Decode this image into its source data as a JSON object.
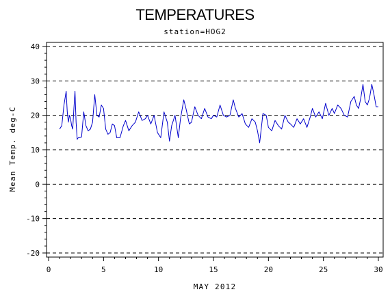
{
  "chart_data": {
    "type": "line",
    "title": "TEMPERATURES",
    "subtitle": "station=HOG2",
    "xlabel": "MAY 2012",
    "ylabel": "Mean Temp. deg-C",
    "xlim": [
      0,
      30
    ],
    "ylim": [
      -20,
      40
    ],
    "x_ticks": [
      0,
      5,
      10,
      15,
      20,
      25,
      30
    ],
    "y_ticks": [
      -20,
      -10,
      0,
      10,
      20,
      30,
      40
    ],
    "grid": "horizontal dashed lines at major y ticks",
    "line_color": "#0000cc",
    "series": [
      {
        "x": [
          1.0,
          1.2,
          1.4,
          1.6,
          1.7,
          1.8,
          1.9,
          2.0,
          2.1,
          2.2,
          2.3,
          2.4,
          2.5,
          2.6,
          2.7,
          2.8,
          3.0,
          3.2,
          3.4,
          3.6,
          3.8,
          4.0,
          4.2,
          4.4,
          4.6,
          4.8,
          5.0,
          5.2,
          5.4,
          5.6,
          5.8,
          6.0,
          6.2,
          6.5,
          6.8,
          7.0,
          7.3,
          7.6,
          7.9,
          8.2,
          8.5,
          8.8,
          9.0,
          9.3,
          9.6,
          9.9,
          10.2,
          10.5,
          10.8,
          11.0,
          11.2,
          11.5,
          11.8,
          12.0,
          12.3,
          12.5,
          12.8,
          13.0,
          13.3,
          13.6,
          13.9,
          14.2,
          14.5,
          14.8,
          15.0,
          15.3,
          15.6,
          15.9,
          16.2,
          16.5,
          16.8,
          17.0,
          17.3,
          17.6,
          17.9,
          18.2,
          18.5,
          18.8,
          19.0,
          19.2,
          19.5,
          19.8,
          20.0,
          20.3,
          20.6,
          20.9,
          21.2,
          21.5,
          21.8,
          22.0,
          22.3,
          22.6,
          22.9,
          23.2,
          23.5,
          23.8,
          24.0,
          24.3,
          24.6,
          24.9,
          25.2,
          25.5,
          25.8,
          26.0,
          26.3,
          26.6,
          26.9,
          27.2,
          27.5,
          27.8,
          28.0,
          28.2,
          28.4,
          28.6,
          28.8,
          29.0,
          29.2,
          29.4,
          29.6,
          29.8,
          30.0
        ],
        "y": [
          16,
          17,
          23,
          27,
          21,
          18,
          20,
          19,
          17,
          16,
          22,
          27,
          18,
          13,
          13.5,
          13.5,
          13.7,
          21,
          17,
          15.5,
          16,
          18,
          26,
          20,
          19.5,
          23,
          22,
          16,
          14.5,
          15,
          17.5,
          17,
          13.5,
          13.5,
          17,
          18.5,
          15.5,
          17,
          18,
          21,
          18.5,
          19,
          20,
          17.5,
          20,
          15,
          13.5,
          21,
          18,
          12.5,
          17,
          20,
          13.5,
          19,
          24.5,
          22,
          17.5,
          18,
          22.5,
          20,
          19,
          22,
          19.5,
          19,
          20,
          19.5,
          23,
          20,
          19.5,
          20,
          24.5,
          22,
          19.5,
          20.5,
          17.5,
          16.5,
          19,
          18,
          15.5,
          12,
          20.5,
          20,
          16.5,
          15.5,
          18.5,
          17,
          16,
          20,
          18,
          17.5,
          16.5,
          19,
          17.5,
          19,
          16.5,
          19.5,
          22,
          19.5,
          21,
          19,
          23.5,
          20,
          22,
          20.5,
          23,
          22,
          20,
          19.5,
          24,
          25.5,
          23,
          22,
          25,
          29,
          24,
          23,
          25,
          29,
          26,
          22.5,
          22.5
        ]
      }
    ]
  }
}
